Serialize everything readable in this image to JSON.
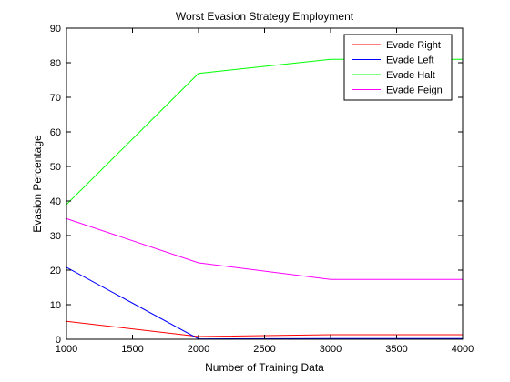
{
  "chart_data": {
    "type": "line",
    "title": "Worst Evasion Strategy Employment",
    "xlabel": "Number of Training Data",
    "ylabel": "Evasion Percentage",
    "xlim": [
      1000,
      4000
    ],
    "ylim": [
      0,
      90
    ],
    "xticks": [
      1000,
      1500,
      2000,
      2500,
      3000,
      3500,
      4000
    ],
    "yticks": [
      0,
      10,
      20,
      30,
      40,
      50,
      60,
      70,
      80,
      90
    ],
    "x": [
      1000,
      2000,
      3000,
      4000
    ],
    "grid": false,
    "legend_position": "top-right",
    "series": [
      {
        "name": "Evade Right",
        "color": "#ff0000",
        "values": [
          5.2,
          0.8,
          1.3,
          1.3
        ]
      },
      {
        "name": "Evade Left",
        "color": "#0000ff",
        "values": [
          20.8,
          0.1,
          0.2,
          0.2
        ]
      },
      {
        "name": "Evade Halt",
        "color": "#00ff00",
        "values": [
          39.0,
          76.9,
          81.0,
          81.0
        ]
      },
      {
        "name": "Evade Feign",
        "color": "#ff00ff",
        "values": [
          34.9,
          22.1,
          17.3,
          17.3
        ]
      }
    ]
  }
}
